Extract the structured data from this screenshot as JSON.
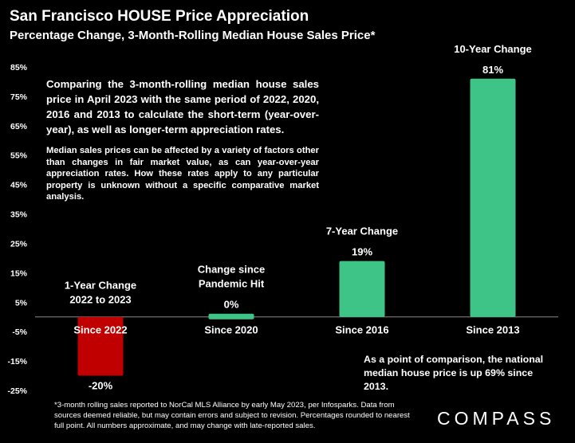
{
  "header": {
    "title": "San Francisco HOUSE Price Appreciation",
    "subtitle": "Percentage Change, 3-Month-Rolling Median House Sales Price*"
  },
  "annotations": {
    "description_main": "Comparing the 3-month-rolling median house sales price in April 2023 with the same period of 2022, 2020, 2016 and 2013 to calculate the short-term (year-over-year), as well as longer-term appreciation rates.",
    "description_secondary": "Median sales prices can be affected by a variety of factors other than changes in fair market value, as can year-over-year appreciation rates. How these rates apply to any particular property is unknown without a specific comparative market analysis.",
    "comparison_note": "As a point of comparison, the national median house price is up 69% since 2013.",
    "footnote": "*3-month rolling sales reported to NorCal MLS Alliance by early May 2023, per Infosparks. Data from sources deemed reliable, but may contain errors and subject to revision. Percentages rounded to nearest full point. All numbers approximate, and may change with late-reported sales.",
    "logo": "COMPASS"
  },
  "chart_data": {
    "type": "bar",
    "categories": [
      "Since 2022",
      "Since 2020",
      "Since 2016",
      "Since 2013"
    ],
    "values": [
      -20,
      0,
      19,
      81
    ],
    "data_labels": [
      "-20%",
      "0%",
      "19%",
      "81%"
    ],
    "category_titles": [
      "1-Year Change\n2022 to 2023",
      "Change since\nPandemic Hit",
      "7-Year Change",
      "10-Year Change"
    ],
    "bar_colors": [
      "#c00000",
      "#3ec487",
      "#3ec487",
      "#3ec487"
    ],
    "ylim": [
      -25,
      85
    ],
    "yticks": [
      -25,
      -15,
      -5,
      5,
      15,
      25,
      35,
      45,
      55,
      65,
      75,
      85
    ],
    "ytick_labels": [
      "-25%",
      "-15%",
      "-5%",
      "5%",
      "15%",
      "25%",
      "35%",
      "45%",
      "55%",
      "65%",
      "75%",
      "85%"
    ],
    "grid": false,
    "legend": "none"
  }
}
